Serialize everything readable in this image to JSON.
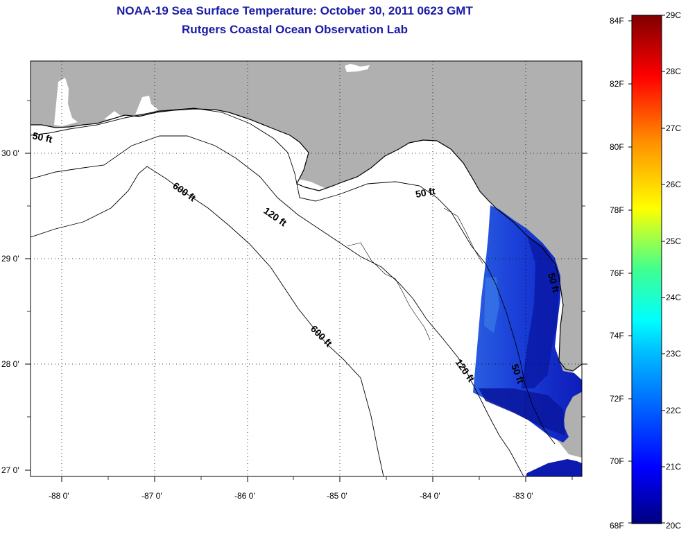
{
  "title": "NOAA-19 Sea Surface Temperature:  October 30, 2011 0623 GMT",
  "subtitle": "Rutgers Coastal Ocean Observation Lab",
  "map": {
    "lat_ticks": [
      "30 0'",
      "29 0'",
      "28 0'",
      "27 0'"
    ],
    "lon_ticks": [
      "-88 0'",
      "-87 0'",
      "-86 0'",
      "-85 0'",
      "-84 0'",
      "-83 0'"
    ],
    "contour_labels": [
      "50 ft",
      "600 ft",
      "120 ft",
      "50 ft",
      "600 ft",
      "120 ft",
      "50 ft",
      "50 ft"
    ],
    "land_color": "#b0b0b0",
    "ocean_color": "#ffffff"
  },
  "colorbar": {
    "f_labels": [
      "84F",
      "82F",
      "80F",
      "78F",
      "76F",
      "74F",
      "72F",
      "70F",
      "68F"
    ],
    "c_labels": [
      "29C",
      "28C",
      "27C",
      "26C",
      "25C",
      "24C",
      "23C",
      "22C",
      "21C",
      "20C"
    ],
    "range_f": [
      68,
      84
    ],
    "range_c": [
      20,
      29
    ],
    "colormap": "jet"
  }
}
